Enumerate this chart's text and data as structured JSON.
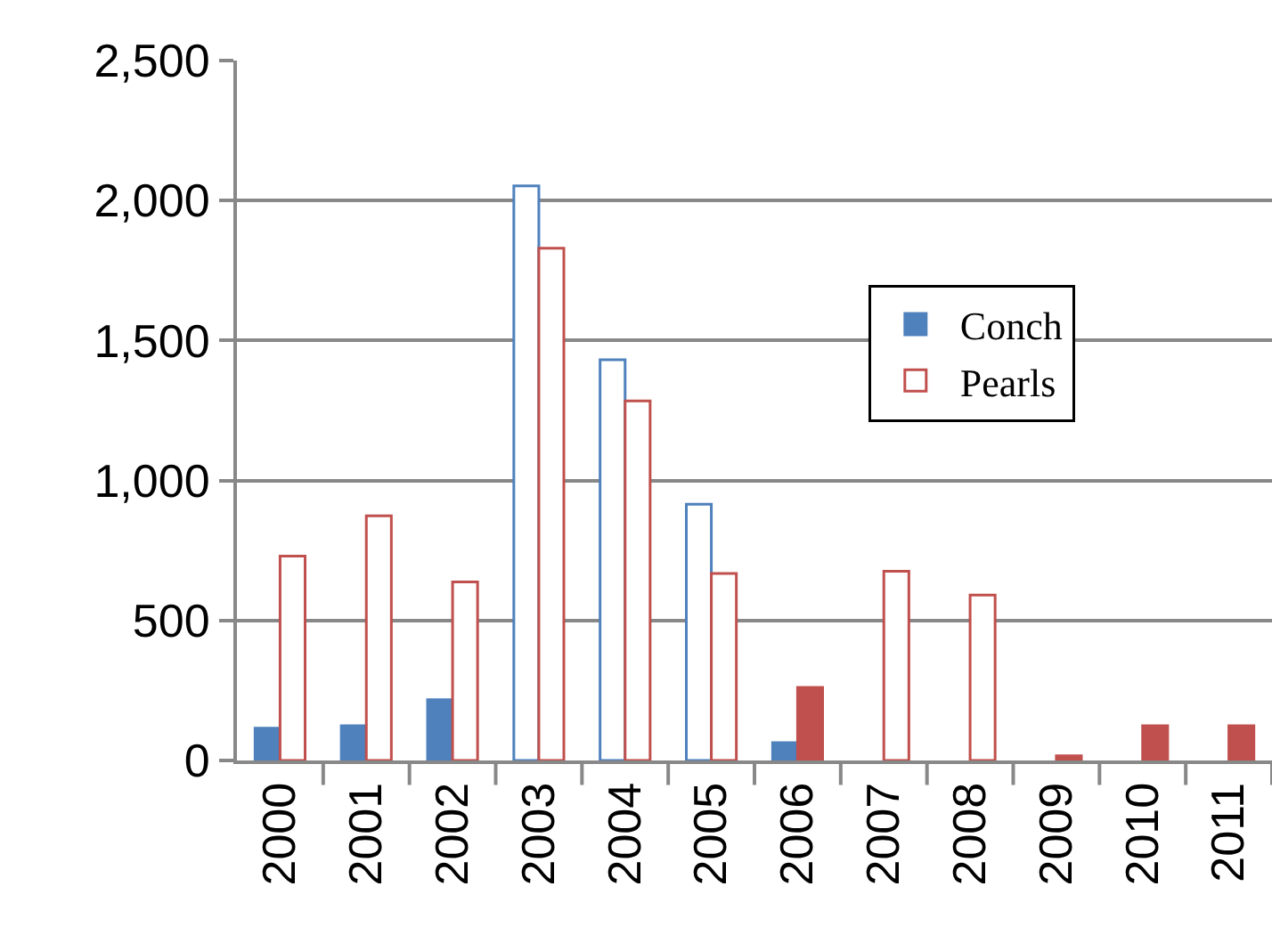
{
  "chart_data": {
    "type": "bar",
    "categories": [
      "2000",
      "2001",
      "2002",
      "2003",
      "2004",
      "2005",
      "2006",
      "2007",
      "2008",
      "2009",
      "2010",
      "2011"
    ],
    "series": [
      {
        "name": "Conch",
        "color": "#4f81bd",
        "colors": [
          "#4f81bd",
          "#4f81bd",
          "#4f81bd",
          "#ffffff",
          "#ffffff",
          "#ffffff",
          "#4f81bd",
          null,
          null,
          null,
          null,
          null
        ],
        "values": [
          115,
          124,
          217,
          2052,
          1431,
          915,
          64,
          null,
          null,
          null,
          null,
          null
        ]
      },
      {
        "name": "Pearls",
        "color": "#c0504d",
        "colors": [
          "#ffffff",
          "#ffffff",
          "#ffffff",
          "#ffffff",
          "#ffffff",
          "#ffffff",
          "#c0504d",
          "#ffffff",
          "#ffffff",
          "#c0504d",
          "#c0504d",
          "#c0504d"
        ],
        "values": [
          730,
          874,
          638,
          1830,
          1284,
          668,
          261,
          676,
          591,
          17,
          124,
          124
        ]
      }
    ],
    "ylim": [
      0,
      2500
    ],
    "yticks": [
      {
        "value": 0,
        "label": "0"
      },
      {
        "value": 500,
        "label": "500"
      },
      {
        "value": 1000,
        "label": "1,000"
      },
      {
        "value": 1500,
        "label": "1,500"
      },
      {
        "value": 2000,
        "label": "2,000"
      },
      {
        "value": 2500,
        "label": "2,500"
      }
    ],
    "grid": "y",
    "legend": "right"
  }
}
